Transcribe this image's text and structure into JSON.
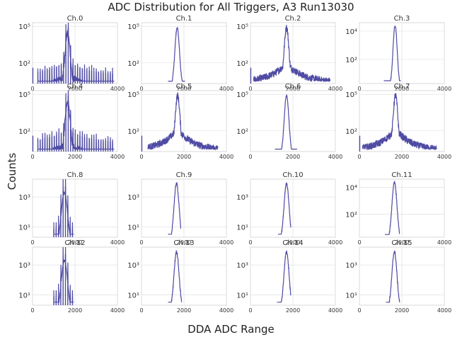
{
  "title": "ADC Distribution for All Triggers, A3 Run13030",
  "xlabel": "DDA ADC Range",
  "ylabel": "Counts",
  "colors": {
    "line": "#4f4ba3",
    "grid": "#dcdcdc",
    "axis": "#d0d0d0",
    "text": "#333333"
  },
  "chart_data": [
    {
      "type": "line",
      "title": "Ch.0",
      "xlim": [
        0,
        4000
      ],
      "xticks": [
        "0",
        "2000",
        "4000"
      ],
      "ylog": true,
      "ymin_exp": 0.3,
      "ymax_exp": 5.3,
      "yticks": [
        {
          "exp": 2,
          "label": "10²"
        },
        {
          "exp": 5,
          "label": "10⁵"
        }
      ],
      "peak": 1650,
      "peak_exp": 5.0,
      "width": 140,
      "tail_exp": 1.2,
      "spread": 900,
      "floor_exp": 0.5,
      "comb": true,
      "spike0": true,
      "xmin": 250,
      "xmax": 3850
    },
    {
      "type": "line",
      "title": "Ch.1",
      "xlim": [
        0,
        4000
      ],
      "xticks": [
        "0",
        "2000",
        "4000"
      ],
      "ylog": true,
      "ymin_exp": 0.3,
      "ymax_exp": 5.3,
      "yticks": [
        {
          "exp": 2,
          "label": "10²"
        },
        {
          "exp": 5,
          "label": "10⁵"
        }
      ],
      "peak": 1680,
      "peak_exp": 4.9,
      "width": 110,
      "tail_exp": 0.0,
      "spread": 0,
      "floor_exp": 0.5,
      "comb": false,
      "spike0": false,
      "xmin": 1250,
      "xmax": 2050
    },
    {
      "type": "line",
      "title": "Ch.2",
      "xlim": [
        0,
        4000
      ],
      "xticks": [
        "0",
        "2000",
        "4000"
      ],
      "ylog": true,
      "ymin_exp": 0.3,
      "ymax_exp": 5.3,
      "yticks": [
        {
          "exp": 2,
          "label": "10²"
        },
        {
          "exp": 5,
          "label": "10⁵"
        }
      ],
      "peak": 1700,
      "peak_exp": 4.9,
      "width": 120,
      "tail_exp": 1.6,
      "spread": 750,
      "floor_exp": 0.5,
      "comb": false,
      "spike0": true,
      "xmin": 150,
      "xmax": 3750
    },
    {
      "type": "line",
      "title": "Ch.3",
      "xlim": [
        0,
        4000
      ],
      "xticks": [
        "0",
        "2000",
        "4000"
      ],
      "ylog": true,
      "ymin_exp": 0.3,
      "ymax_exp": 4.6,
      "yticks": [
        {
          "exp": 2,
          "label": "10²"
        },
        {
          "exp": 4,
          "label": "10⁴"
        }
      ],
      "peak": 1680,
      "peak_exp": 4.4,
      "width": 100,
      "tail_exp": 0.0,
      "spread": 0,
      "floor_exp": 0.5,
      "comb": false,
      "spike0": false,
      "xmin": 1150,
      "xmax": 1950
    },
    {
      "type": "line",
      "title": "Ch.4",
      "xlim": [
        0,
        4000
      ],
      "xticks": [
        "0",
        "2000",
        "4000"
      ],
      "ylog": true,
      "ymin_exp": 0.3,
      "ymax_exp": 5.3,
      "yticks": [
        {
          "exp": 2,
          "label": "10²"
        },
        {
          "exp": 5,
          "label": "10⁵"
        }
      ],
      "peak": 1650,
      "peak_exp": 5.0,
      "width": 140,
      "tail_exp": 1.2,
      "spread": 900,
      "floor_exp": 0.5,
      "comb": true,
      "spike0": true,
      "xmin": 250,
      "xmax": 3850
    },
    {
      "type": "line",
      "title": "Ch.5",
      "xlim": [
        0,
        4000
      ],
      "xticks": [
        "0",
        "2000",
        "4000"
      ],
      "ylog": true,
      "ymin_exp": 0.3,
      "ymax_exp": 5.3,
      "yticks": [
        {
          "exp": 2,
          "label": "10²"
        },
        {
          "exp": 5,
          "label": "10⁵"
        }
      ],
      "peak": 1700,
      "peak_exp": 4.9,
      "width": 120,
      "tail_exp": 1.8,
      "spread": 700,
      "floor_exp": 0.5,
      "comb": false,
      "spike0": true,
      "xmin": 300,
      "xmax": 3600
    },
    {
      "type": "line",
      "title": "Ch.6",
      "xlim": [
        0,
        4000
      ],
      "xticks": [
        "0",
        "2000",
        "4000"
      ],
      "ylog": true,
      "ymin_exp": 0.3,
      "ymax_exp": 5.3,
      "yticks": [
        {
          "exp": 2,
          "label": "10²"
        },
        {
          "exp": 5,
          "label": "10⁵"
        }
      ],
      "peak": 1700,
      "peak_exp": 4.9,
      "width": 110,
      "tail_exp": 0.0,
      "spread": 0,
      "floor_exp": 0.5,
      "comb": false,
      "spike0": false,
      "xmin": 1150,
      "xmax": 2200
    },
    {
      "type": "line",
      "title": "Ch.7",
      "xlim": [
        0,
        4000
      ],
      "xticks": [
        "0",
        "2000",
        "4000"
      ],
      "ylog": true,
      "ymin_exp": 0.3,
      "ymax_exp": 5.3,
      "yticks": [
        {
          "exp": 2,
          "label": "10²"
        },
        {
          "exp": 5,
          "label": "10⁵"
        }
      ],
      "peak": 1700,
      "peak_exp": 4.9,
      "width": 120,
      "tail_exp": 1.8,
      "spread": 700,
      "floor_exp": 0.5,
      "comb": false,
      "spike0": true,
      "xmin": 150,
      "xmax": 3650
    },
    {
      "type": "line",
      "title": "Ch.8",
      "xlim": [
        0,
        4000
      ],
      "xticks": [
        "0",
        "2000",
        "4000"
      ],
      "ylog": true,
      "ymin_exp": 0.3,
      "ymax_exp": 4.2,
      "yticks": [
        {
          "exp": 1,
          "label": "10¹"
        },
        {
          "exp": 3,
          "label": "10³"
        }
      ],
      "peak": 1500,
      "peak_exp": 3.9,
      "width": 160,
      "tail_exp": 0.0,
      "spread": 0,
      "floor_exp": 0.5,
      "comb": true,
      "spike0": false,
      "xmin": 1000,
      "xmax": 1950
    },
    {
      "type": "line",
      "title": "Ch.9",
      "xlim": [
        0,
        4000
      ],
      "xticks": [
        "0",
        "2000",
        "4000"
      ],
      "ylog": true,
      "ymin_exp": 0.3,
      "ymax_exp": 4.2,
      "yticks": [
        {
          "exp": 1,
          "label": "10¹"
        },
        {
          "exp": 3,
          "label": "10³"
        }
      ],
      "peak": 1650,
      "peak_exp": 3.9,
      "width": 120,
      "tail_exp": 0.0,
      "spread": 0,
      "floor_exp": 0.5,
      "comb": false,
      "spike0": false,
      "xmin": 1250,
      "xmax": 1850
    },
    {
      "type": "line",
      "title": "Ch.10",
      "xlim": [
        0,
        4000
      ],
      "xticks": [
        "0",
        "2000",
        "4000"
      ],
      "ylog": true,
      "ymin_exp": 0.3,
      "ymax_exp": 4.2,
      "yticks": [
        {
          "exp": 1,
          "label": "10¹"
        },
        {
          "exp": 3,
          "label": "10³"
        }
      ],
      "peak": 1700,
      "peak_exp": 3.9,
      "width": 120,
      "tail_exp": 0.0,
      "spread": 0,
      "floor_exp": 0.5,
      "comb": false,
      "spike0": false,
      "xmin": 1300,
      "xmax": 1900
    },
    {
      "type": "line",
      "title": "Ch.11",
      "xlim": [
        0,
        4000
      ],
      "xticks": [
        "0",
        "2000",
        "4000"
      ],
      "ylog": true,
      "ymin_exp": 0.3,
      "ymax_exp": 4.6,
      "yticks": [
        {
          "exp": 2,
          "label": "10²"
        },
        {
          "exp": 4,
          "label": "10⁴"
        }
      ],
      "peak": 1650,
      "peak_exp": 4.4,
      "width": 120,
      "tail_exp": 0.0,
      "spread": 0,
      "floor_exp": 0.5,
      "comb": false,
      "spike0": false,
      "xmin": 1200,
      "xmax": 1900
    },
    {
      "type": "line",
      "title": "Ch.12",
      "xlim": [
        0,
        4000
      ],
      "xticks": [
        "0",
        "2000",
        "4000"
      ],
      "ylog": true,
      "ymin_exp": 0.3,
      "ymax_exp": 4.2,
      "yticks": [
        {
          "exp": 1,
          "label": "10¹"
        },
        {
          "exp": 3,
          "label": "10³"
        }
      ],
      "peak": 1500,
      "peak_exp": 3.9,
      "width": 160,
      "tail_exp": 0.0,
      "spread": 0,
      "floor_exp": 0.5,
      "comb": true,
      "spike0": false,
      "xmin": 1000,
      "xmax": 1950
    },
    {
      "type": "line",
      "title": "Ch.13",
      "xlim": [
        0,
        4000
      ],
      "xticks": [
        "0",
        "2000",
        "4000"
      ],
      "ylog": true,
      "ymin_exp": 0.3,
      "ymax_exp": 4.2,
      "yticks": [
        {
          "exp": 1,
          "label": "10¹"
        },
        {
          "exp": 3,
          "label": "10³"
        }
      ],
      "peak": 1650,
      "peak_exp": 3.9,
      "width": 120,
      "tail_exp": 0.0,
      "spread": 0,
      "floor_exp": 0.5,
      "comb": false,
      "spike0": false,
      "xmin": 1250,
      "xmax": 1900
    },
    {
      "type": "line",
      "title": "Ch.14",
      "xlim": [
        0,
        4000
      ],
      "xticks": [
        "0",
        "2000",
        "4000"
      ],
      "ylog": true,
      "ymin_exp": 0.3,
      "ymax_exp": 4.2,
      "yticks": [
        {
          "exp": 1,
          "label": "10¹"
        },
        {
          "exp": 3,
          "label": "10³"
        }
      ],
      "peak": 1700,
      "peak_exp": 3.9,
      "width": 120,
      "tail_exp": 0.0,
      "spread": 0,
      "floor_exp": 0.5,
      "comb": false,
      "spike0": false,
      "xmin": 1250,
      "xmax": 1900
    },
    {
      "type": "line",
      "title": "Ch.15",
      "xlim": [
        0,
        4000
      ],
      "xticks": [
        "0",
        "2000",
        "4000"
      ],
      "ylog": true,
      "ymin_exp": 0.3,
      "ymax_exp": 4.2,
      "yticks": [
        {
          "exp": 1,
          "label": "10¹"
        },
        {
          "exp": 3,
          "label": "10³"
        }
      ],
      "peak": 1650,
      "peak_exp": 3.9,
      "width": 120,
      "tail_exp": 0.0,
      "spread": 0,
      "floor_exp": 0.5,
      "comb": false,
      "spike0": false,
      "xmin": 1250,
      "xmax": 1900
    }
  ]
}
